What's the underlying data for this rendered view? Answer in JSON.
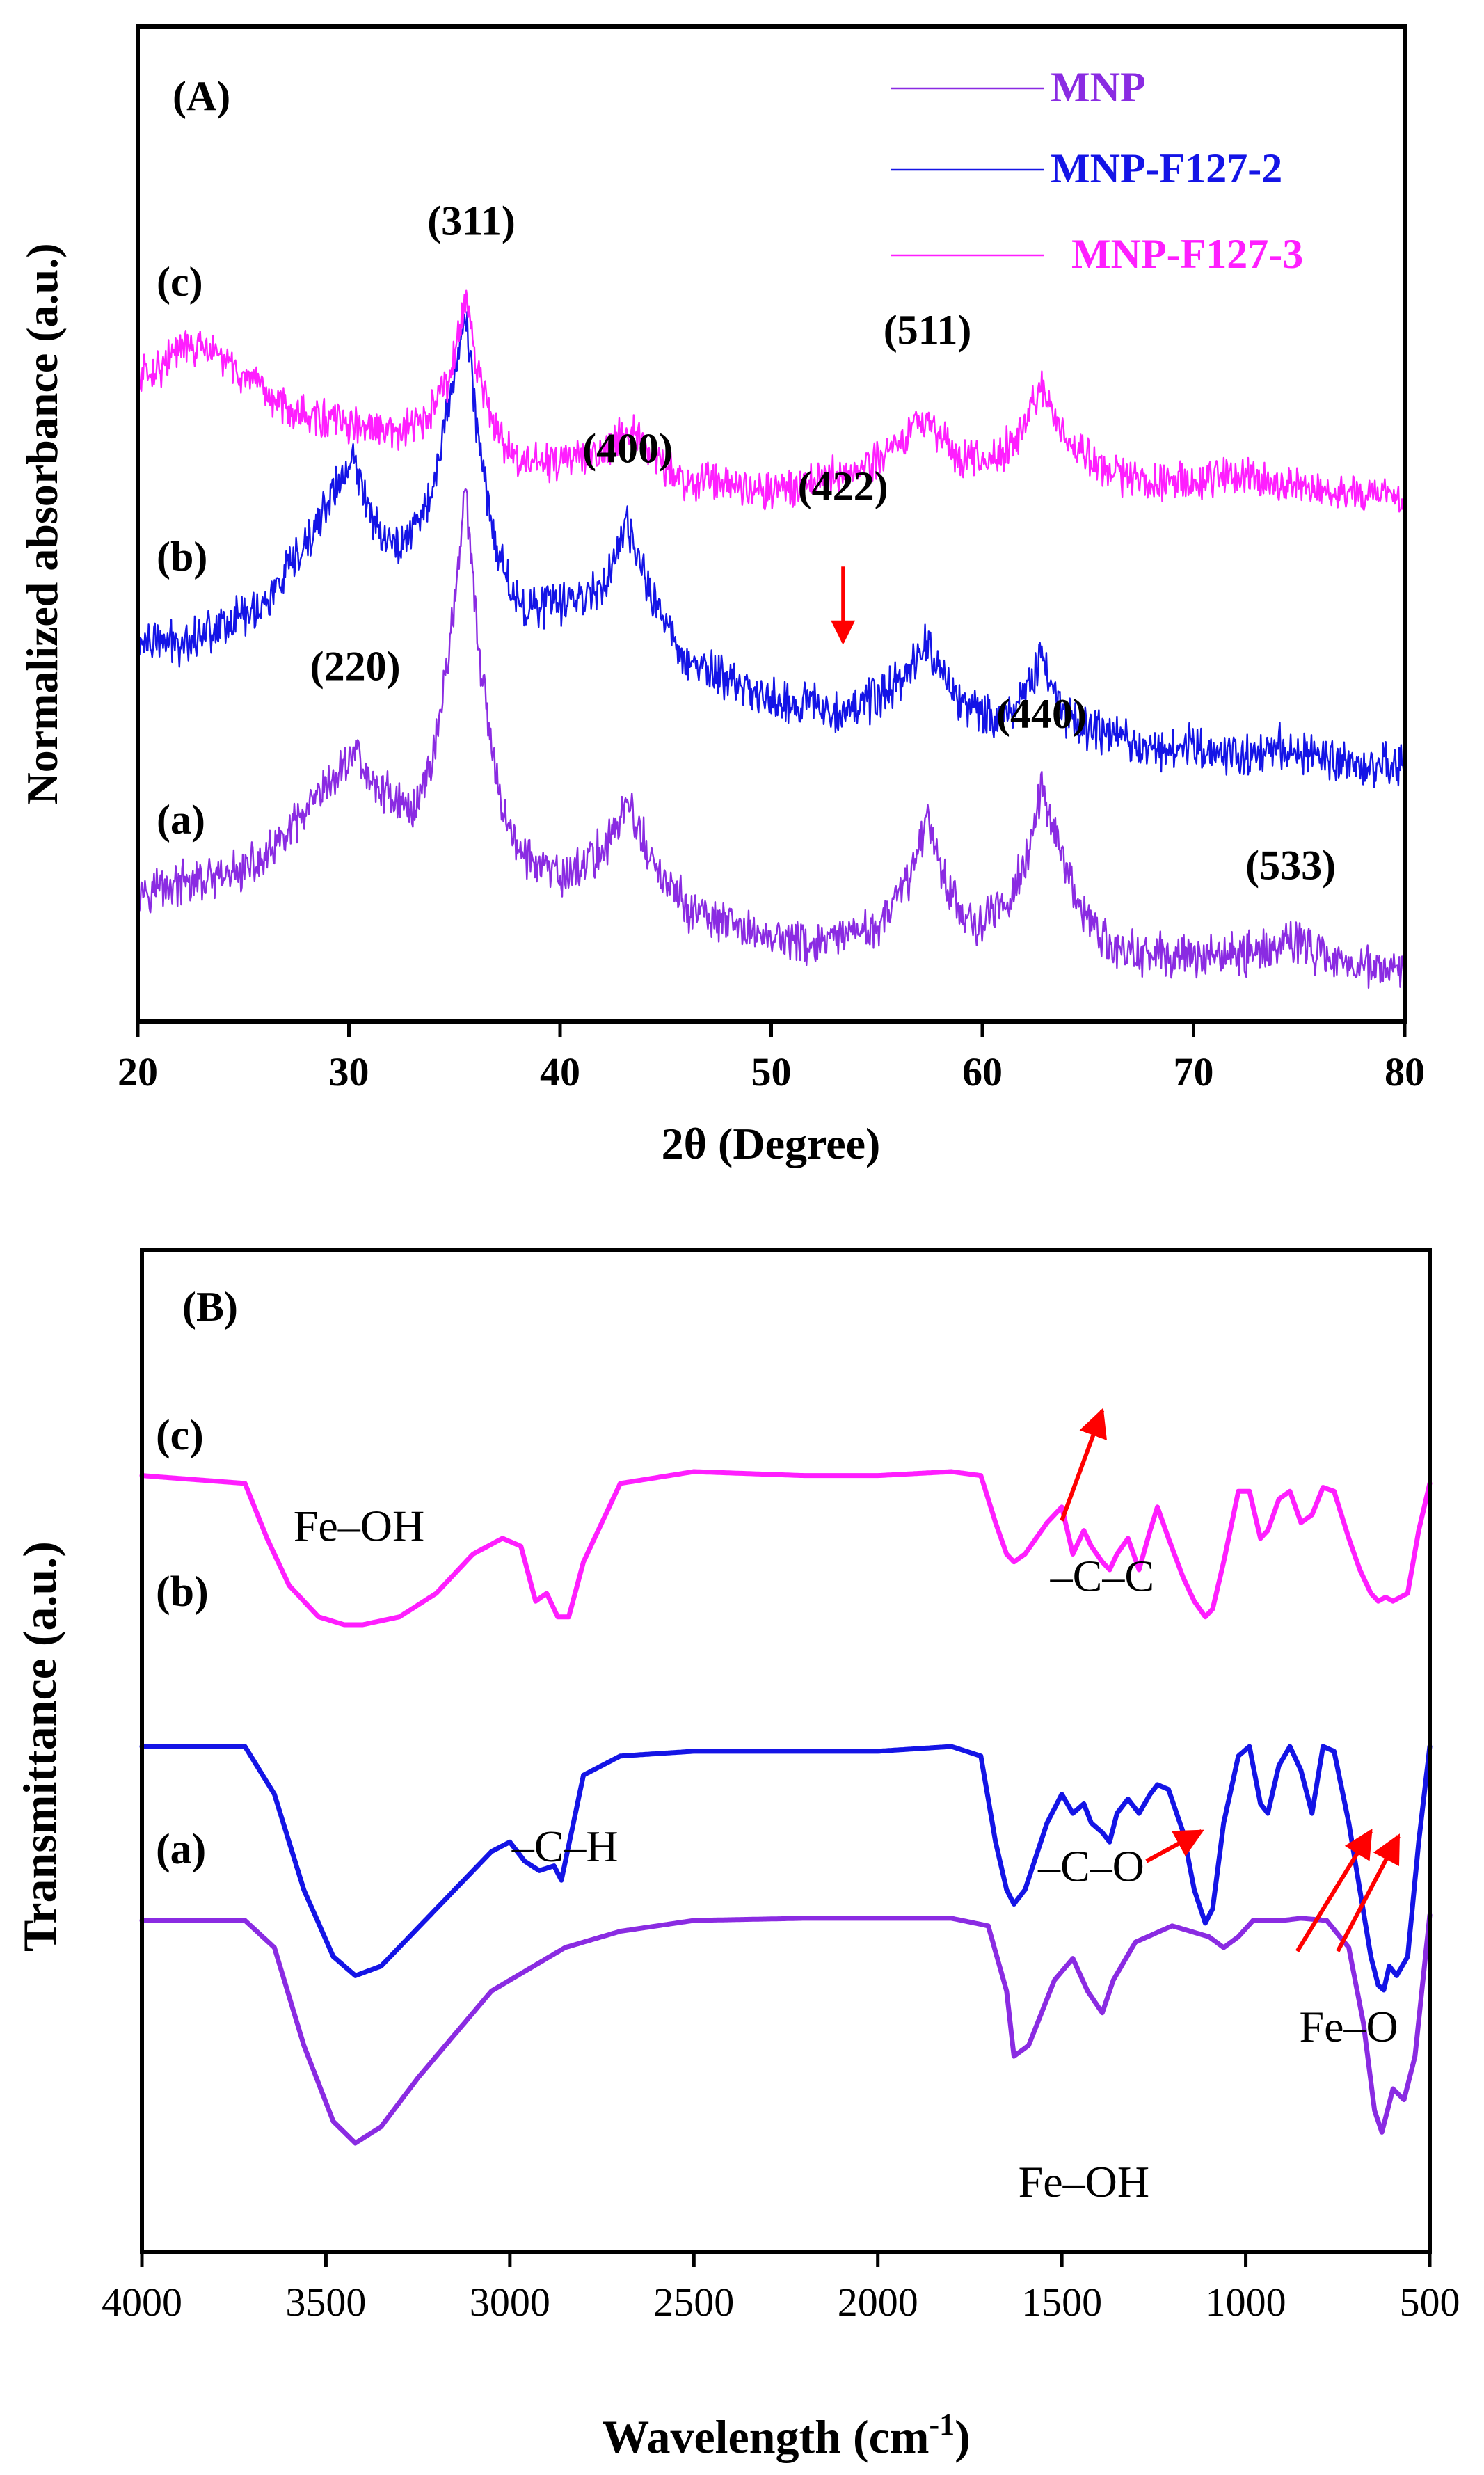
{
  "chart_data": [
    {
      "panel_label": "(A)",
      "type": "line",
      "xlabel": "2θ (Degree)",
      "ylabel": "Normalized absorbance (a.u.)",
      "xlim": [
        20,
        80
      ],
      "xticks": [
        "20",
        "30",
        "40",
        "50",
        "60",
        "70",
        "80"
      ],
      "xtick_values": [
        20,
        30,
        40,
        50,
        60,
        70,
        80
      ],
      "legend": [
        {
          "name": "MNP",
          "color": "#8A2BE2"
        },
        {
          "name": "MNP-F127-2",
          "color": "#1414E6"
        },
        {
          "name": "MNP-F127-3",
          "color": "#FF1EFF"
        }
      ],
      "series": [
        {
          "name": "MNP",
          "trace_label": "(a)",
          "color": "#8A2BE2",
          "baseline": 0.34,
          "slope": -0.0012,
          "noise": 0.018,
          "x": [
            20,
            22,
            24,
            26,
            28,
            29.5,
            30.3,
            31,
            32,
            33,
            34,
            34.8,
            35.5,
            36.2,
            37,
            38,
            40,
            42,
            43.2,
            44.5,
            46,
            48,
            50,
            52,
            54,
            55.5,
            56.7,
            57.4,
            58.2,
            59.5,
            61,
            62.3,
            62.8,
            63.5,
            64.5,
            66,
            68,
            70,
            72,
            74,
            74.6,
            76,
            78,
            80
          ],
          "y": [
            0.34,
            0.345,
            0.35,
            0.37,
            0.42,
            0.46,
            0.49,
            0.45,
            0.44,
            0.42,
            0.48,
            0.6,
            0.76,
            0.58,
            0.45,
            0.38,
            0.35,
            0.38,
            0.43,
            0.36,
            0.32,
            0.3,
            0.29,
            0.28,
            0.29,
            0.31,
            0.36,
            0.42,
            0.35,
            0.3,
            0.32,
            0.38,
            0.45,
            0.4,
            0.32,
            0.28,
            0.27,
            0.27,
            0.27,
            0.28,
            0.29,
            0.27,
            0.26,
            0.25
          ]
        },
        {
          "name": "MNP-F127-2",
          "trace_label": "(b)",
          "color": "#1414E6",
          "baseline": 0.58,
          "slope": -0.0012,
          "noise": 0.018,
          "x": [
            20,
            22,
            24,
            26,
            28,
            29,
            30.2,
            31,
            32,
            33,
            34,
            34.8,
            35.5,
            36.2,
            37,
            38,
            40,
            42,
            43.2,
            44.5,
            46,
            48,
            50,
            53.4,
            55,
            56.5,
            57.4,
            58.5,
            60,
            61.5,
            62.8,
            64,
            66,
            68,
            70,
            72,
            74,
            76,
            78,
            80
          ],
          "y": [
            0.6,
            0.6,
            0.62,
            0.64,
            0.7,
            0.75,
            0.79,
            0.74,
            0.7,
            0.72,
            0.76,
            0.86,
            0.95,
            0.8,
            0.7,
            0.64,
            0.64,
            0.66,
            0.72,
            0.64,
            0.58,
            0.56,
            0.54,
            0.53,
            0.54,
            0.57,
            0.6,
            0.55,
            0.52,
            0.53,
            0.58,
            0.52,
            0.5,
            0.49,
            0.49,
            0.48,
            0.49,
            0.48,
            0.47,
            0.47
          ]
        },
        {
          "name": "MNP-F127-3",
          "trace_label": "(c)",
          "color": "#FF1EFF",
          "baseline": 0.84,
          "slope": -0.0012,
          "noise": 0.016,
          "x": [
            20,
            21,
            22,
            23,
            24,
            25,
            26,
            28,
            30,
            32,
            33.5,
            34.8,
            35.5,
            36.2,
            37,
            38,
            40,
            42,
            43.2,
            44.5,
            46,
            48,
            50,
            52,
            53.5,
            55,
            56.5,
            57.4,
            58.5,
            60,
            61.5,
            62.8,
            64,
            66,
            68,
            70,
            72,
            74,
            76,
            78,
            80
          ],
          "y": [
            0.88,
            0.89,
            0.91,
            0.91,
            0.9,
            0.88,
            0.86,
            0.84,
            0.83,
            0.82,
            0.83,
            0.88,
            0.96,
            0.88,
            0.82,
            0.79,
            0.79,
            0.8,
            0.83,
            0.79,
            0.77,
            0.77,
            0.76,
            0.77,
            0.78,
            0.79,
            0.82,
            0.84,
            0.8,
            0.79,
            0.81,
            0.87,
            0.81,
            0.78,
            0.77,
            0.77,
            0.78,
            0.77,
            0.76,
            0.76,
            0.75
          ]
        }
      ],
      "ylim": [
        0.2,
        1.25
      ],
      "annotations": [
        {
          "text": "(220)",
          "x": 30.3,
          "y": 0.56
        },
        {
          "text": "(311)",
          "x": 35.8,
          "y": 1.03
        },
        {
          "text": "(400)",
          "x": 43.2,
          "y": 0.79
        },
        {
          "text": "(422)",
          "x": 53.4,
          "y": 0.75,
          "arrow_to": [
            53.4,
            0.6
          ],
          "arrow_from": [
            53.4,
            0.68
          ]
        },
        {
          "text": "(511)",
          "x": 57.4,
          "y": 0.915
        },
        {
          "text": "(440)",
          "x": 62.8,
          "y": 0.51
        },
        {
          "text": "(533)",
          "x": 74.6,
          "y": 0.35
        }
      ]
    },
    {
      "panel_label": "(B)",
      "type": "line",
      "xlabel": "Wavelength (cm",
      "xlabel_superscript": "-1",
      "xlabel_close": ")",
      "ylabel": "Transmittance (a.u.)",
      "xlim": [
        4000,
        500
      ],
      "xticks": [
        "4000",
        "3500",
        "3000",
        "2500",
        "2000",
        "1500",
        "1000",
        "500"
      ],
      "xtick_values": [
        4000,
        3500,
        3000,
        2500,
        2000,
        1500,
        1000,
        500
      ],
      "ylim": [
        0,
        1
      ],
      "series": [
        {
          "name": "MNP",
          "trace_label": "(a)",
          "color": "#8A2BE2",
          "x": [
            4000,
            3720,
            3640,
            3560,
            3480,
            3420,
            3350,
            3250,
            3150,
            3050,
            2950,
            2850,
            2700,
            2500,
            2200,
            2000,
            1800,
            1700,
            1650,
            1630,
            1590,
            1520,
            1470,
            1430,
            1390,
            1360,
            1300,
            1200,
            1100,
            1060,
            1020,
            980,
            900,
            850,
            780,
            720,
            680,
            650,
            630,
            600,
            570,
            540,
            500
          ],
          "y": [
            0.175,
            0.175,
            0.15,
            0.06,
            -0.01,
            -0.03,
            -0.015,
            0.03,
            0.07,
            0.11,
            0.13,
            0.15,
            0.165,
            0.175,
            0.177,
            0.177,
            0.177,
            0.17,
            0.11,
            0.05,
            0.06,
            0.12,
            0.14,
            0.11,
            0.09,
            0.12,
            0.155,
            0.17,
            0.16,
            0.15,
            0.16,
            0.175,
            0.175,
            0.177,
            0.175,
            0.15,
            0.08,
            0.0,
            -0.02,
            0.02,
            0.01,
            0.05,
            0.18
          ]
        },
        {
          "name": "MNP-F127-2",
          "trace_label": "(b)",
          "color": "#1414E6",
          "x": [
            4000,
            3720,
            3640,
            3560,
            3480,
            3420,
            3350,
            3250,
            3150,
            3050,
            3000,
            2960,
            2920,
            2880,
            2860,
            2800,
            2700,
            2500,
            2200,
            2000,
            1800,
            1720,
            1680,
            1650,
            1630,
            1600,
            1540,
            1500,
            1470,
            1440,
            1420,
            1390,
            1370,
            1350,
            1320,
            1290,
            1260,
            1240,
            1210,
            1170,
            1140,
            1110,
            1090,
            1060,
            1020,
            990,
            960,
            940,
            910,
            880,
            850,
            820,
            790,
            760,
            720,
            690,
            660,
            640,
            625,
            610,
            590,
            560,
            530,
            500
          ],
          "y": [
            0.6,
            0.6,
            0.55,
            0.45,
            0.38,
            0.36,
            0.37,
            0.41,
            0.45,
            0.49,
            0.5,
            0.48,
            0.47,
            0.475,
            0.46,
            0.57,
            0.59,
            0.595,
            0.595,
            0.595,
            0.6,
            0.59,
            0.5,
            0.45,
            0.435,
            0.45,
            0.52,
            0.55,
            0.53,
            0.54,
            0.52,
            0.51,
            0.5,
            0.53,
            0.545,
            0.53,
            0.55,
            0.56,
            0.555,
            0.51,
            0.45,
            0.415,
            0.43,
            0.52,
            0.59,
            0.6,
            0.54,
            0.53,
            0.58,
            0.6,
            0.575,
            0.53,
            0.6,
            0.595,
            0.52,
            0.45,
            0.38,
            0.35,
            0.345,
            0.37,
            0.36,
            0.38,
            0.5,
            0.6
          ]
        },
        {
          "name": "MNP-F127-3",
          "trace_label": "(c)",
          "color": "#FF1EFF",
          "x": [
            4000,
            3720,
            3660,
            3600,
            3520,
            3450,
            3400,
            3300,
            3200,
            3100,
            3020,
            2970,
            2930,
            2900,
            2870,
            2840,
            2800,
            2700,
            2500,
            2200,
            2000,
            1800,
            1720,
            1680,
            1650,
            1630,
            1600,
            1540,
            1500,
            1470,
            1440,
            1420,
            1390,
            1370,
            1350,
            1320,
            1290,
            1260,
            1240,
            1210,
            1170,
            1140,
            1110,
            1090,
            1060,
            1020,
            990,
            960,
            940,
            910,
            880,
            850,
            820,
            790,
            760,
            720,
            690,
            660,
            640,
            620,
            600,
            560,
            530,
            500
          ],
          "y": [
            0.98,
            0.97,
            0.9,
            0.84,
            0.8,
            0.79,
            0.79,
            0.8,
            0.83,
            0.88,
            0.9,
            0.89,
            0.82,
            0.83,
            0.8,
            0.8,
            0.87,
            0.97,
            0.985,
            0.98,
            0.98,
            0.985,
            0.98,
            0.92,
            0.88,
            0.87,
            0.88,
            0.92,
            0.94,
            0.88,
            0.91,
            0.89,
            0.87,
            0.86,
            0.88,
            0.9,
            0.86,
            0.91,
            0.94,
            0.9,
            0.85,
            0.82,
            0.8,
            0.81,
            0.87,
            0.96,
            0.96,
            0.9,
            0.91,
            0.95,
            0.96,
            0.92,
            0.93,
            0.965,
            0.96,
            0.9,
            0.86,
            0.83,
            0.82,
            0.825,
            0.82,
            0.83,
            0.91,
            0.97
          ]
        }
      ],
      "annotations": [
        {
          "text": "Fe–OH",
          "x": 3410,
          "y": 0.71
        },
        {
          "text": "–C–C",
          "x": 1390,
          "y": 0.66,
          "arrow_from": [
            1500,
            0.73
          ],
          "arrow_to": [
            1390,
            0.84
          ]
        },
        {
          "text": "–C–H",
          "x": 2850,
          "y": 0.39
        },
        {
          "text": "–C–O",
          "x": 1420,
          "y": 0.37,
          "arrow_from": [
            1270,
            0.39
          ],
          "arrow_to": [
            1120,
            0.42
          ]
        },
        {
          "text": "Fe–O",
          "x": 720,
          "y": 0.21,
          "arrow_from": [
            860,
            0.3
          ],
          "arrow_to": [
            660,
            0.42
          ]
        },
        {
          "text": "",
          "arrow_from": [
            750,
            0.3
          ],
          "arrow_to": [
            585,
            0.415
          ]
        },
        {
          "text": "Fe–OH",
          "x": 1440,
          "y": 0.055
        }
      ]
    }
  ]
}
